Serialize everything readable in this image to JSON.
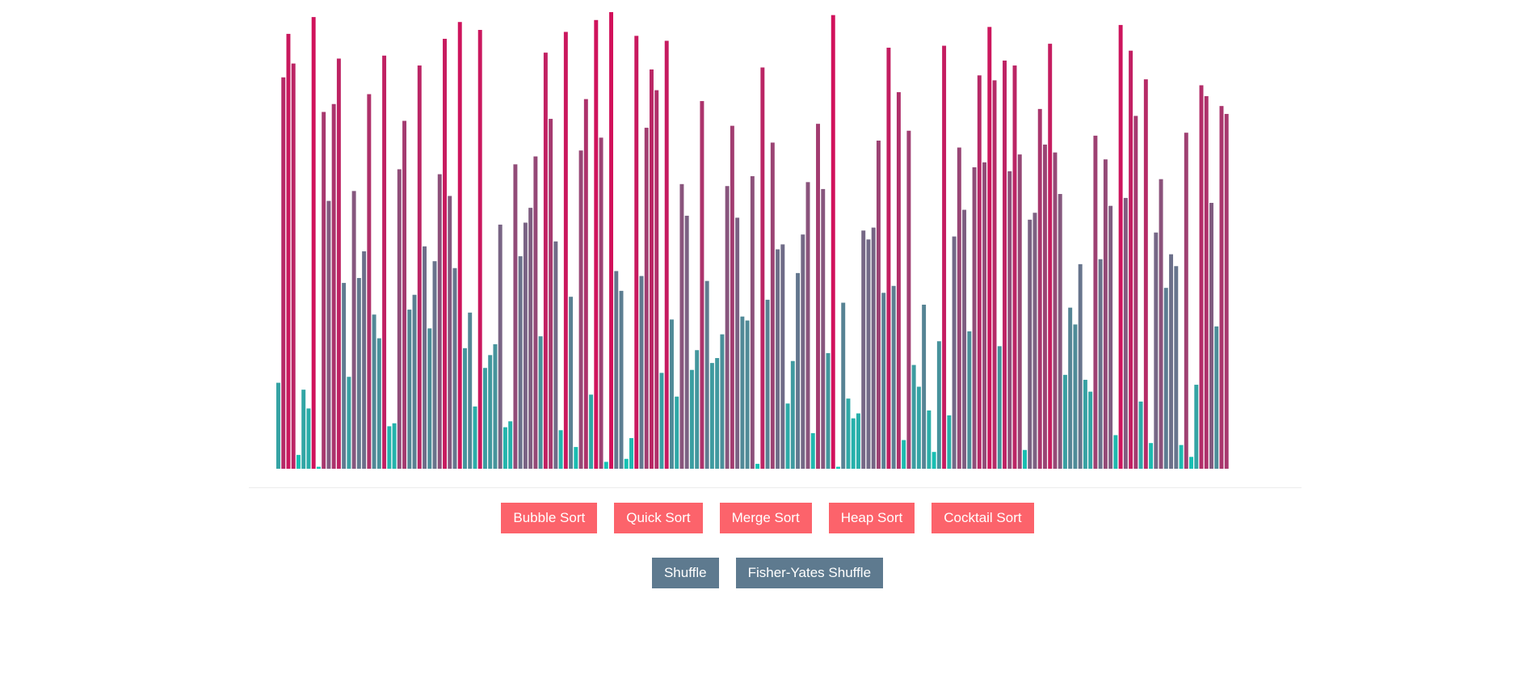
{
  "bars": {
    "values": [
      87,
      396,
      440,
      410,
      14,
      80,
      61,
      457,
      2,
      361,
      271,
      369,
      415,
      188,
      93,
      281,
      193,
      220,
      379,
      156,
      132,
      418,
      43,
      46,
      303,
      352,
      161,
      176,
      408,
      225,
      142,
      210,
      298,
      435,
      276,
      203,
      452,
      122,
      158,
      63,
      444,
      102,
      115,
      126,
      247,
      42,
      48,
      308,
      215,
      249,
      264,
      316,
      134,
      421,
      354,
      230,
      39,
      442,
      174,
      22,
      322,
      374,
      75,
      454,
      335,
      7,
      462,
      200,
      180,
      10,
      31,
      438,
      195,
      345,
      404,
      383,
      97,
      433,
      151,
      73,
      288,
      256,
      100,
      120,
      372,
      190,
      107,
      112,
      136,
      286,
      347,
      254,
      154,
      150,
      296,
      5,
      406,
      171,
      330,
      222,
      227,
      66,
      109,
      198,
      237,
      290,
      36,
      349,
      283,
      117,
      459,
      2,
      168,
      71,
      51,
      56,
      241,
      232,
      244,
      332,
      178,
      426,
      185,
      381,
      29,
      342,
      105,
      83,
      166,
      59,
      17,
      129,
      428,
      54,
      235,
      325,
      262,
      139,
      305,
      398,
      310,
      447,
      393,
      124,
      413,
      301,
      408,
      318,
      19,
      252,
      259,
      364,
      328,
      430,
      320,
      278,
      95,
      163,
      146,
      207,
      90,
      78,
      337,
      212,
      313,
      266,
      34,
      449,
      274,
      423,
      357,
      68,
      394,
      26,
      239,
      293,
      183,
      217,
      205,
      24,
      340,
      12,
      85,
      388,
      377,
      269,
      144,
      367,
      359
    ]
  },
  "sort_buttons": [
    "Bubble Sort",
    "Quick Sort",
    "Merge Sort",
    "Heap Sort",
    "Cocktail Sort"
  ],
  "shuffle_buttons": [
    "Shuffle",
    "Fisher-Yates Shuffle"
  ]
}
